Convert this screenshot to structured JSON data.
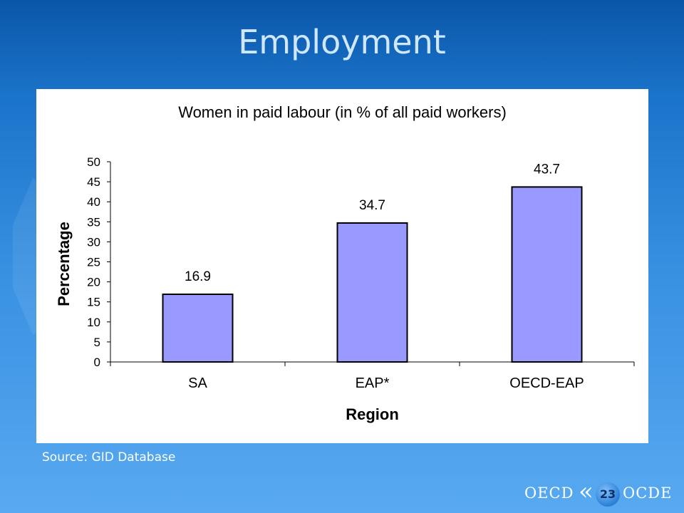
{
  "slide": {
    "title": "Employment",
    "source": "Source: GID Database",
    "page_number": "23",
    "logo_left": "OECD",
    "logo_right": "OCDE"
  },
  "colors": {
    "bar_fill": "#9999ff",
    "bar_stroke": "#000000"
  },
  "chart_data": {
    "type": "bar",
    "title": "Women in paid labour (in % of all paid workers)",
    "xlabel": "Region",
    "ylabel": "Percentage",
    "categories": [
      "SA",
      "EAP*",
      "OECD-EAP"
    ],
    "values": [
      16.9,
      34.7,
      43.7
    ],
    "data_labels": [
      "16.9",
      "34.7",
      "43.7"
    ],
    "ylim": [
      0,
      50
    ],
    "yticks": [
      "0",
      "5",
      "10",
      "15",
      "20",
      "25",
      "30",
      "35",
      "40",
      "45",
      "50"
    ],
    "grid": false,
    "legend": "none"
  }
}
